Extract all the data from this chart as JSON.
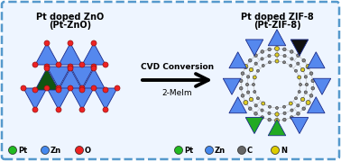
{
  "bg_color": "#eef5ff",
  "border_color": "#5599cc",
  "title_left_line1": "Pt doped ZnO",
  "title_left_line2": "(Pt-ZnO)",
  "title_right_line1": "Pt doped ZIF-8",
  "title_right_line2": "(Pt-ZIF-8)",
  "arrow_label_top": "CVD Conversion",
  "arrow_label_bot": "2-MeIm",
  "legend_left": [
    {
      "label": "Pt",
      "color": "#22bb22"
    },
    {
      "label": "Zn",
      "color": "#4488ee"
    },
    {
      "label": "O",
      "color": "#ee2222"
    }
  ],
  "legend_right": [
    {
      "label": "Pt",
      "color": "#22bb22"
    },
    {
      "label": "Zn",
      "color": "#4488ee"
    },
    {
      "label": "C",
      "color": "#666666"
    },
    {
      "label": "N",
      "color": "#ddcc00"
    }
  ],
  "zno_blue": "#5588ee",
  "zno_pt": "#115511",
  "zno_o": "#ee2222",
  "zif_blue": "#5588ee",
  "zif_green": "#22aa22",
  "zif_dark": "#111111",
  "zif_c": "#888888",
  "zif_n": "#ddcc22",
  "zif_bond": "#bbbbbb"
}
